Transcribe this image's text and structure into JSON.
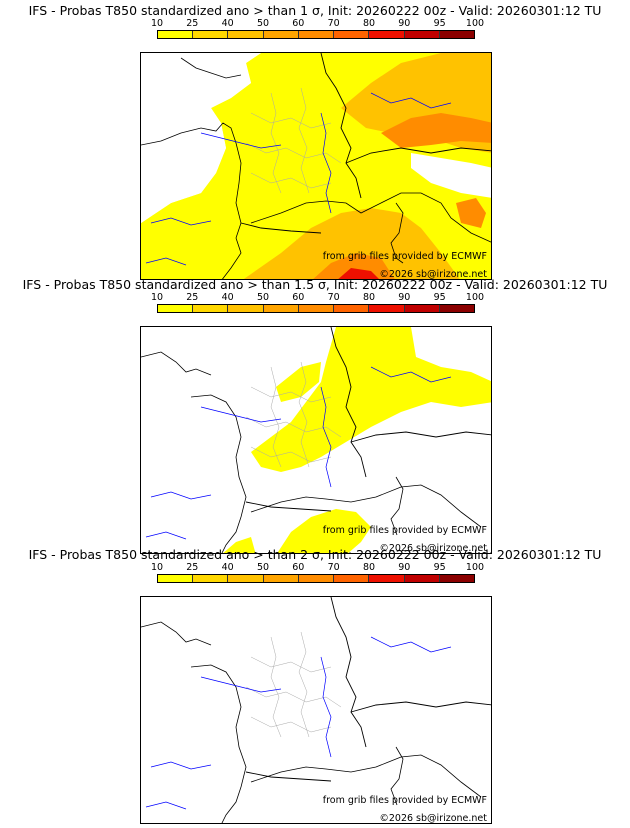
{
  "panels": [
    {
      "title": "IFS - Probas T850  standardized ano > than 1 σ, Init: 20260222 00z - Valid: 20260301:12 TU",
      "credit_ecmwf": "from grib files provided by ECMWF",
      "credit_site": "©2026 sb@irizone.net",
      "threshold_sigma": 1
    },
    {
      "title": "IFS - Probas T850  standardized ano > than 1.5 σ, Init: 20260222 00z - Valid: 20260301:12 TU",
      "credit_ecmwf": "from grib files provided by ECMWF",
      "credit_site": "©2026 sb@irizone.net",
      "threshold_sigma": 1.5
    },
    {
      "title": "IFS - Probas T850  standardized ano > than 2 σ, Init: 20260222 00z - Valid: 20260301:12 TU",
      "credit_ecmwf": "from grib files provided by ECMWF",
      "credit_site": "©2026 sb@irizone.net",
      "threshold_sigma": 2
    }
  ],
  "scale": {
    "ticks": [
      "10",
      "25",
      "40",
      "50",
      "60",
      "70",
      "80",
      "90",
      "95",
      "100"
    ],
    "colors": [
      "#ffff00",
      "#ffd800",
      "#ffc200",
      "#ffa500",
      "#ff8c00",
      "#ff6400",
      "#ee1000",
      "#c00000",
      "#8b0000"
    ]
  },
  "colors": {
    "land_border": "#000000",
    "country_lines": "#000000",
    "department_lines": "#a9a9a9",
    "rivers": "#0000ff",
    "prob_light": "#ffff00",
    "prob_mid": "#ffc200",
    "prob_high": "#ff8c00",
    "prob_peak": "#ee1000"
  }
}
